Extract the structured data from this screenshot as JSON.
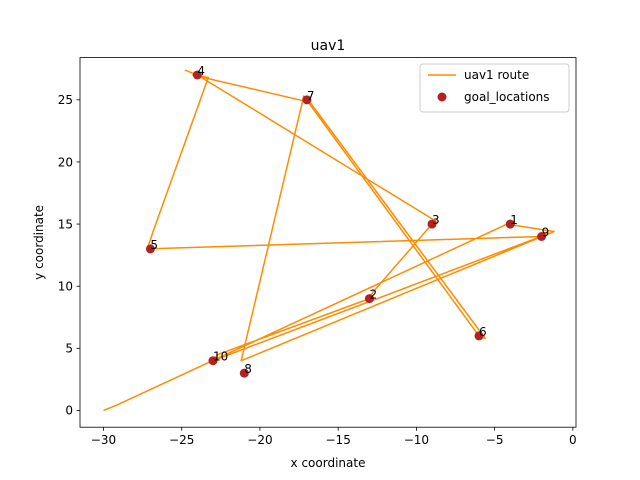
{
  "chart_data": {
    "type": "line",
    "title": "uav1",
    "xlabel": "x coordinate",
    "ylabel": "y coordinate",
    "xlim": [
      -31.5,
      0.2
    ],
    "ylim": [
      -1.35,
      28.4
    ],
    "xticks": [
      -30,
      -25,
      -20,
      -15,
      -10,
      -5,
      0
    ],
    "yticks": [
      0,
      5,
      10,
      15,
      20,
      25
    ],
    "grid": false,
    "legend_position": "upper right",
    "route": {
      "name": "uav1 route",
      "color": "#ff8c00",
      "x": [
        -30,
        -29.2,
        -4.2,
        -1.2,
        -21.2,
        -17.2,
        -6,
        -5.6,
        -16.8,
        -24.3,
        -23.3,
        -26.8,
        -27.2,
        -2,
        -1.6,
        -23,
        -22.7,
        -13,
        -12.8,
        -9,
        -8.7,
        -24,
        -24.8
      ],
      "y": [
        0,
        0.4,
        15,
        14.4,
        4,
        25.3,
        6,
        5.8,
        24.8,
        27,
        26.8,
        14.5,
        13,
        14,
        14.2,
        4,
        4.5,
        9,
        9.5,
        15,
        15.2,
        27,
        27.4
      ]
    },
    "goals": {
      "name": "goal_locations",
      "color": "#b22222",
      "points": [
        {
          "label": "1",
          "x": -4,
          "y": 15
        },
        {
          "label": "2",
          "x": -13,
          "y": 9
        },
        {
          "label": "3",
          "x": -9,
          "y": 15
        },
        {
          "label": "4",
          "x": -24,
          "y": 27
        },
        {
          "label": "5",
          "x": -27,
          "y": 13
        },
        {
          "label": "6",
          "x": -6,
          "y": 6
        },
        {
          "label": "7",
          "x": -17,
          "y": 25
        },
        {
          "label": "8",
          "x": -21,
          "y": 3
        },
        {
          "label": "9",
          "x": -2,
          "y": 14
        },
        {
          "label": "10",
          "x": -23,
          "y": 4
        }
      ]
    }
  }
}
